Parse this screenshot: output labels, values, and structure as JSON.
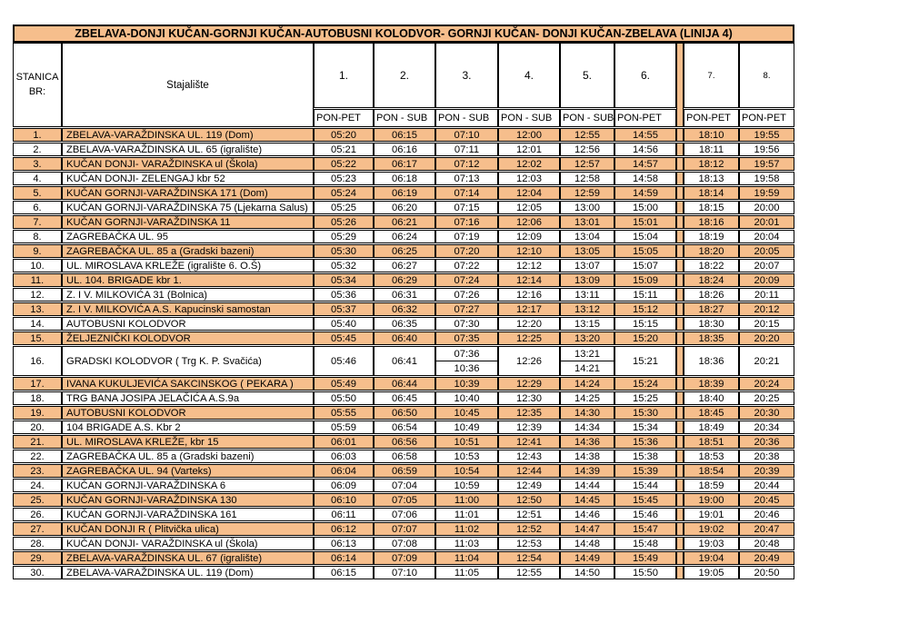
{
  "title": "ZBELAVA-DONJI KUČAN-GORNJI KUČAN-AUTOBUSNI KOLODVOR- GORNJI KUČAN- DONJI KUČAN-ZBELAVA (LINIJA 4)",
  "header": {
    "station_label_line1": "STANICA",
    "station_label_line2": "BR:",
    "stop_label": "Stajalište",
    "columns": [
      {
        "num": "1.",
        "days": "PON-PET"
      },
      {
        "num": "2.",
        "days": "PON - SUB"
      },
      {
        "num": "3.",
        "days": "PON - SUB"
      },
      {
        "num": "4.",
        "days": "PON - SUB"
      },
      {
        "num": "5.",
        "days": "PON - SUB"
      },
      {
        "num": "6.",
        "days": "PON-PET"
      },
      {
        "num": "7.",
        "days": "PON-PET"
      },
      {
        "num": "8.",
        "days": "PON-PET"
      }
    ]
  },
  "colors": {
    "highlight_orange": "#F6BE8C",
    "border": "#000000"
  },
  "rows": [
    {
      "br": "1.",
      "stop": "ZBELAVA-VARAŽDINSKA UL. 119 (Dom)",
      "highlight": true,
      "times": [
        "05:20",
        "06:15",
        "07:10",
        "12:00",
        "12:55",
        "14:55",
        "18:10",
        "19:55"
      ]
    },
    {
      "br": "2.",
      "stop": "ZBELAVA-VARAŽDINSKA UL. 65 (igralište)",
      "highlight": false,
      "times": [
        "05:21",
        "06:16",
        "07:11",
        "12:01",
        "12:56",
        "14:56",
        "18:11",
        "19:56"
      ]
    },
    {
      "br": "3.",
      "stop": "KUČAN DONJI- VARAŽDINSKA ul (Škola)",
      "highlight": true,
      "times": [
        "05:22",
        "06:17",
        "07:12",
        "12:02",
        "12:57",
        "14:57",
        "18:12",
        "19:57"
      ]
    },
    {
      "br": "4.",
      "stop": "KUČAN DONJI- ZELENGAJ kbr 52",
      "highlight": false,
      "times": [
        "05:23",
        "06:18",
        "07:13",
        "12:03",
        "12:58",
        "14:58",
        "18:13",
        "19:58"
      ]
    },
    {
      "br": "5.",
      "stop": "KUČAN GORNJI-VARAŽDINSKA 171 (Dom)",
      "highlight": true,
      "times": [
        "05:24",
        "06:19",
        "07:14",
        "12:04",
        "12:59",
        "14:59",
        "18:14",
        "19:59"
      ]
    },
    {
      "br": "6.",
      "stop": "KUČAN GORNJI-VARAŽDINSKA 75 (Ljekarna Salus)",
      "highlight": false,
      "times": [
        "05:25",
        "06:20",
        "07:15",
        "12:05",
        "13:00",
        "15:00",
        "18:15",
        "20:00"
      ]
    },
    {
      "br": "7.",
      "stop": "KUČAN GORNJI-VARAŽDINSKA 11",
      "highlight": true,
      "times": [
        "05:26",
        "06:21",
        "07:16",
        "12:06",
        "13:01",
        "15:01",
        "18:16",
        "20:01"
      ]
    },
    {
      "br": "8.",
      "stop": "ZAGREBAČKA UL. 95",
      "highlight": false,
      "times": [
        "05:29",
        "06:24",
        "07:19",
        "12:09",
        "13:04",
        "15:04",
        "18:19",
        "20:04"
      ]
    },
    {
      "br": "9.",
      "stop": "ZAGREBAČKA UL. 85 a (Gradski bazeni)",
      "highlight": true,
      "times": [
        "05:30",
        "06:25",
        "07:20",
        "12:10",
        "13:05",
        "15:05",
        "18:20",
        "20:05"
      ]
    },
    {
      "br": "10.",
      "stop": "UL. MIROSLAVA KRLEŽE (igralište 6. O.Š)",
      "highlight": false,
      "times": [
        "05:32",
        "06:27",
        "07:22",
        "12:12",
        "13:07",
        "15:07",
        "18:22",
        "20:07"
      ]
    },
    {
      "br": "11.",
      "stop": "UL. 104. BRIGADE kbr 1.",
      "highlight": true,
      "times": [
        "05:34",
        "06:29",
        "07:24",
        "12:14",
        "13:09",
        "15:09",
        "18:24",
        "20:09"
      ]
    },
    {
      "br": "12.",
      "stop": "Z. I V. MILKOVIĆA 31 (Bolnica)",
      "highlight": false,
      "times": [
        "05:36",
        "06:31",
        "07:26",
        "12:16",
        "13:11",
        "15:11",
        "18:26",
        "20:11"
      ]
    },
    {
      "br": "13.",
      "stop": "Z. I V. MILKOVIĆA A.S. Kapucinski samostan",
      "highlight": true,
      "times": [
        "05:37",
        "06:32",
        "07:27",
        "12:17",
        "13:12",
        "15:12",
        "18:27",
        "20:12"
      ]
    },
    {
      "br": "14.",
      "stop": "AUTOBUSNI KOLODVOR",
      "highlight": false,
      "times": [
        "05:40",
        "06:35",
        "07:30",
        "12:20",
        "13:15",
        "15:15",
        "18:30",
        "20:15"
      ]
    },
    {
      "br": "15.",
      "stop": "ŽELJEZNIČKI KOLODVOR",
      "highlight": true,
      "times": [
        "05:45",
        "06:40",
        "07:35",
        "12:25",
        "13:20",
        "15:20",
        "18:35",
        "20:20"
      ]
    },
    {
      "br": "16.",
      "stop": "GRADSKI KOLODVOR ( Trg K. P. Svačića)",
      "highlight": false,
      "tall": true,
      "times": [
        "05:46",
        "06:41",
        [
          "07:36",
          "10:36"
        ],
        "12:26",
        [
          "13:21",
          "14:21"
        ],
        "15:21",
        "18:36",
        "20:21"
      ]
    },
    {
      "br": "17.",
      "stop": "IVANA KUKULJEVIĆA SAKCINSKOG ( PEKARA )",
      "highlight": true,
      "times": [
        "05:49",
        "06:44",
        "10:39",
        "12:29",
        "14:24",
        "15:24",
        "18:39",
        "20:24"
      ]
    },
    {
      "br": "18.",
      "stop": "TRG BANA JOSIPA JELAČIĆA A.S.9a",
      "highlight": false,
      "times": [
        "05:50",
        "06:45",
        "10:40",
        "12:30",
        "14:25",
        "15:25",
        "18:40",
        "20:25"
      ]
    },
    {
      "br": "19.",
      "stop": "AUTOBUSNI KOLODVOR",
      "highlight": true,
      "times": [
        "05:55",
        "06:50",
        "10:45",
        "12:35",
        "14:30",
        "15:30",
        "18:45",
        "20:30"
      ]
    },
    {
      "br": "20.",
      "stop": "104 BRIGADE A.S. Kbr 2",
      "highlight": false,
      "times": [
        "05:59",
        "06:54",
        "10:49",
        "12:39",
        "14:34",
        "15:34",
        "18:49",
        "20:34"
      ]
    },
    {
      "br": "21.",
      "stop": "UL. MIROSLAVA KRLEŽE, kbr 15",
      "highlight": true,
      "times": [
        "06:01",
        "06:56",
        "10:51",
        "12:41",
        "14:36",
        "15:36",
        "18:51",
        "20:36"
      ]
    },
    {
      "br": "22.",
      "stop": "ZAGREBAČKA UL. 85 a (Gradski bazeni)",
      "highlight": false,
      "times": [
        "06:03",
        "06:58",
        "10:53",
        "12:43",
        "14:38",
        "15:38",
        "18:53",
        "20:38"
      ]
    },
    {
      "br": "23.",
      "stop": "ZAGREBAČKA UL. 94 (Varteks)",
      "highlight": true,
      "times": [
        "06:04",
        "06:59",
        "10:54",
        "12:44",
        "14:39",
        "15:39",
        "18:54",
        "20:39"
      ]
    },
    {
      "br": "24.",
      "stop": "KUČAN GORNJI-VARAŽDINSKA 6",
      "highlight": false,
      "times": [
        "06:09",
        "07:04",
        "10:59",
        "12:49",
        "14:44",
        "15:44",
        "18:59",
        "20:44"
      ]
    },
    {
      "br": "25.",
      "stop": "KUČAN GORNJI-VARAŽDINSKA 130",
      "highlight": true,
      "times": [
        "06:10",
        "07:05",
        "11:00",
        "12:50",
        "14:45",
        "15:45",
        "19:00",
        "20:45"
      ]
    },
    {
      "br": "26.",
      "stop": "KUČAN GORNJI-VARAŽDINSKA 161",
      "highlight": false,
      "times": [
        "06:11",
        "07:06",
        "11:01",
        "12:51",
        "14:46",
        "15:46",
        "19:01",
        "20:46"
      ]
    },
    {
      "br": "27.",
      "stop": "KUČAN DONJI R ( Plitvička ulica)",
      "highlight": true,
      "times": [
        "06:12",
        "07:07",
        "11:02",
        "12:52",
        "14:47",
        "15:47",
        "19:02",
        "20:47"
      ]
    },
    {
      "br": "28.",
      "stop": "KUČAN DONJI- VARAŽDINSKA ul (Škola)",
      "highlight": false,
      "times": [
        "06:13",
        "07:08",
        "11:03",
        "12:53",
        "14:48",
        "15:48",
        "19:03",
        "20:48"
      ]
    },
    {
      "br": "29.",
      "stop": "ZBELAVA-VARAŽDINSKA UL. 67 (igralište)",
      "highlight": true,
      "times": [
        "06:14",
        "07:09",
        "11:04",
        "12:54",
        "14:49",
        "15:49",
        "19:04",
        "20:49"
      ]
    },
    {
      "br": "30.",
      "stop": "ZBELAVA-VARAŽDINSKA UL. 119 (Dom)",
      "highlight": false,
      "times": [
        "06:15",
        "07:10",
        "11:05",
        "12:55",
        "14:50",
        "15:50",
        "19:05",
        "20:50"
      ]
    }
  ]
}
